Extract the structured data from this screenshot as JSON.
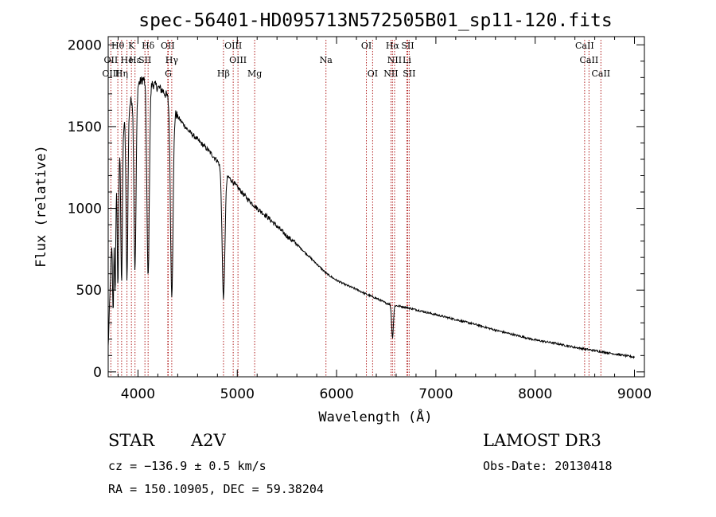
{
  "chart_data": {
    "type": "line",
    "title": "spec-56401-HD095713N572505B01_sp11-120.fits",
    "xlabel": "Wavelength (Å)",
    "ylabel": "Flux (relative)",
    "xlim": [
      3700,
      9100
    ],
    "ylim": [
      -30,
      2050
    ],
    "x_ticks": [
      4000,
      5000,
      6000,
      7000,
      8000,
      9000
    ],
    "y_ticks": [
      0,
      500,
      1000,
      1500,
      2000
    ],
    "continuum_points": [
      [
        3700,
        150
      ],
      [
        3730,
        700
      ],
      [
        3760,
        1100
      ],
      [
        3800,
        1350
      ],
      [
        3850,
        1500
      ],
      [
        3900,
        1600
      ],
      [
        3950,
        1700
      ],
      [
        4000,
        1760
      ],
      [
        4050,
        1790
      ],
      [
        4100,
        1780
      ],
      [
        4150,
        1760
      ],
      [
        4200,
        1740
      ],
      [
        4250,
        1720
      ],
      [
        4300,
        1680
      ],
      [
        4400,
        1560
      ],
      [
        4500,
        1480
      ],
      [
        4600,
        1420
      ],
      [
        4700,
        1360
      ],
      [
        4800,
        1290
      ],
      [
        4900,
        1200
      ],
      [
        5000,
        1130
      ],
      [
        5100,
        1060
      ],
      [
        5200,
        1000
      ],
      [
        5300,
        950
      ],
      [
        5400,
        890
      ],
      [
        5500,
        830
      ],
      [
        5600,
        780
      ],
      [
        5700,
        720
      ],
      [
        5800,
        660
      ],
      [
        5900,
        600
      ],
      [
        6000,
        560
      ],
      [
        6100,
        530
      ],
      [
        6200,
        505
      ],
      [
        6300,
        475
      ],
      [
        6400,
        450
      ],
      [
        6500,
        420
      ],
      [
        6600,
        405
      ],
      [
        6700,
        395
      ],
      [
        6800,
        380
      ],
      [
        7000,
        350
      ],
      [
        7200,
        320
      ],
      [
        7400,
        290
      ],
      [
        7600,
        255
      ],
      [
        7800,
        225
      ],
      [
        8000,
        195
      ],
      [
        8200,
        175
      ],
      [
        8400,
        150
      ],
      [
        8600,
        130
      ],
      [
        8800,
        110
      ],
      [
        9000,
        90
      ]
    ],
    "absorption_features": [
      {
        "wavelength": 3750,
        "depth": 600,
        "width": 6
      },
      {
        "wavelength": 3770,
        "depth": 700,
        "width": 6
      },
      {
        "wavelength": 3798,
        "depth": 800,
        "width": 7
      },
      {
        "wavelength": 3835,
        "depth": 900,
        "width": 8
      },
      {
        "wavelength": 3889,
        "depth": 1000,
        "width": 9
      },
      {
        "wavelength": 3970,
        "depth": 1100,
        "width": 11
      },
      {
        "wavelength": 4102,
        "depth": 1200,
        "width": 12
      },
      {
        "wavelength": 4340,
        "depth": 1150,
        "width": 13
      },
      {
        "wavelength": 4861,
        "depth": 780,
        "width": 14
      },
      {
        "wavelength": 6563,
        "depth": 200,
        "width": 9
      }
    ],
    "spectral_lines": [
      {
        "label": "Hθ",
        "wavelength": 3797,
        "row": 1
      },
      {
        "label": "K",
        "wavelength": 3934,
        "row": 1
      },
      {
        "label": "Hδ",
        "wavelength": 4102,
        "row": 1
      },
      {
        "label": "OII",
        "wavelength": 4300,
        "row": 1
      },
      {
        "label": "OIII",
        "wavelength": 4959,
        "row": 1
      },
      {
        "label": "OI",
        "wavelength": 6300,
        "row": 1
      },
      {
        "label": "Hα",
        "wavelength": 6563,
        "row": 1
      },
      {
        "label": "SII",
        "wavelength": 6716,
        "row": 1
      },
      {
        "label": "CaII",
        "wavelength": 8498,
        "row": 1
      },
      {
        "label": "OII",
        "wavelength": 3727,
        "row": 2
      },
      {
        "label": "He",
        "wavelength": 3889,
        "row": 2
      },
      {
        "label": "Hε",
        "wavelength": 3970,
        "row": 2
      },
      {
        "label": "SII",
        "wavelength": 4070,
        "row": 2
      },
      {
        "label": "Hγ",
        "wavelength": 4340,
        "row": 2
      },
      {
        "label": "OIII",
        "wavelength": 5007,
        "row": 2
      },
      {
        "label": "Na",
        "wavelength": 5893,
        "row": 2
      },
      {
        "label": "NII",
        "wavelength": 6584,
        "row": 2
      },
      {
        "label": "Li",
        "wavelength": 6708,
        "row": 2
      },
      {
        "label": "CaII",
        "wavelength": 8542,
        "row": 2
      },
      {
        "label": "OIII",
        "wavelength": 3727,
        "row": 3
      },
      {
        "label": "Hη",
        "wavelength": 3835,
        "row": 3
      },
      {
        "label": "G",
        "wavelength": 4305,
        "row": 3
      },
      {
        "label": "Hβ",
        "wavelength": 4861,
        "row": 3
      },
      {
        "label": "Mg",
        "wavelength": 5175,
        "row": 3
      },
      {
        "label": "OI",
        "wavelength": 6363,
        "row": 3
      },
      {
        "label": "NII",
        "wavelength": 6548,
        "row": 3
      },
      {
        "label": "SII",
        "wavelength": 6731,
        "row": 3
      },
      {
        "label": "CaII",
        "wavelength": 8662,
        "row": 3
      }
    ],
    "colors": {
      "spectrum": "#000000",
      "marker_lines": "#b22222",
      "axes": "#000000"
    }
  },
  "info": {
    "object_class": "STAR",
    "subclass": "A2V",
    "survey": "LAMOST DR3",
    "redshift": "cz = −136.9 ± 0.5 km/s",
    "obs_date": "Obs-Date: 20130418",
    "coordinates": "RA = 150.10905, DEC =  59.38204"
  }
}
